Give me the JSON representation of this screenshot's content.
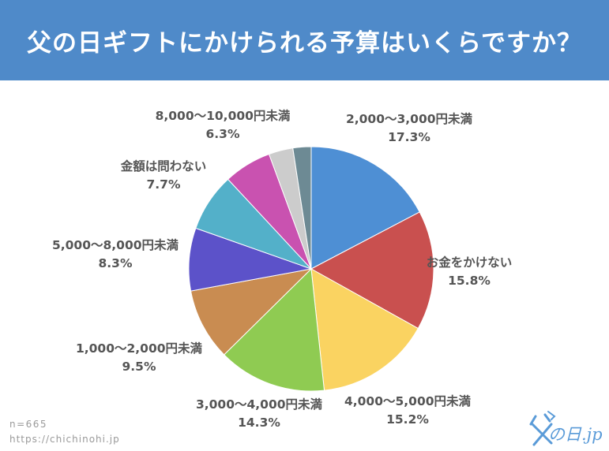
{
  "header": {
    "title": "父の日ギフトにかけられる予算はいくらですか？",
    "bg_color": "#4f8ac9"
  },
  "footer": {
    "sample_size": "n=665",
    "url": "https://chichinohi.jp"
  },
  "logo": {
    "text": "の日.jp",
    "icon": "father-kanji-logo-icon"
  },
  "chart_data": {
    "type": "pie",
    "start": "12 o'clock, clockwise",
    "slices": [
      {
        "label": "2,000〜3,000円未満",
        "pct_label": "17.3%",
        "value": 17.3,
        "color": "#4e8fd4"
      },
      {
        "label": "お金をかけない",
        "pct_label": "15.8%",
        "value": 15.8,
        "color": "#c9504f"
      },
      {
        "label": "4,000〜5,000円未満",
        "pct_label": "15.2%",
        "value": 15.2,
        "color": "#fad361"
      },
      {
        "label": "3,000〜4,000円未満",
        "pct_label": "14.3%",
        "value": 14.3,
        "color": "#8fcb52"
      },
      {
        "label": "1,000〜2,000円未満",
        "pct_label": "9.5%",
        "value": 9.5,
        "color": "#c98c51"
      },
      {
        "label": "5,000〜8,000円未満",
        "pct_label": "8.3%",
        "value": 8.3,
        "color": "#5c52c9"
      },
      {
        "label": "金額は問わない",
        "pct_label": "7.7%",
        "value": 7.7,
        "color": "#53b0c9"
      },
      {
        "label": "8,000〜10,000円未満",
        "pct_label": "6.3%",
        "value": 6.3,
        "color": "#c952b0"
      },
      {
        "label": "",
        "pct_label": "",
        "value": 3.2,
        "color": "#cccccc"
      },
      {
        "label": "",
        "pct_label": "",
        "value": 2.4,
        "color": "#6d8a94"
      }
    ]
  }
}
